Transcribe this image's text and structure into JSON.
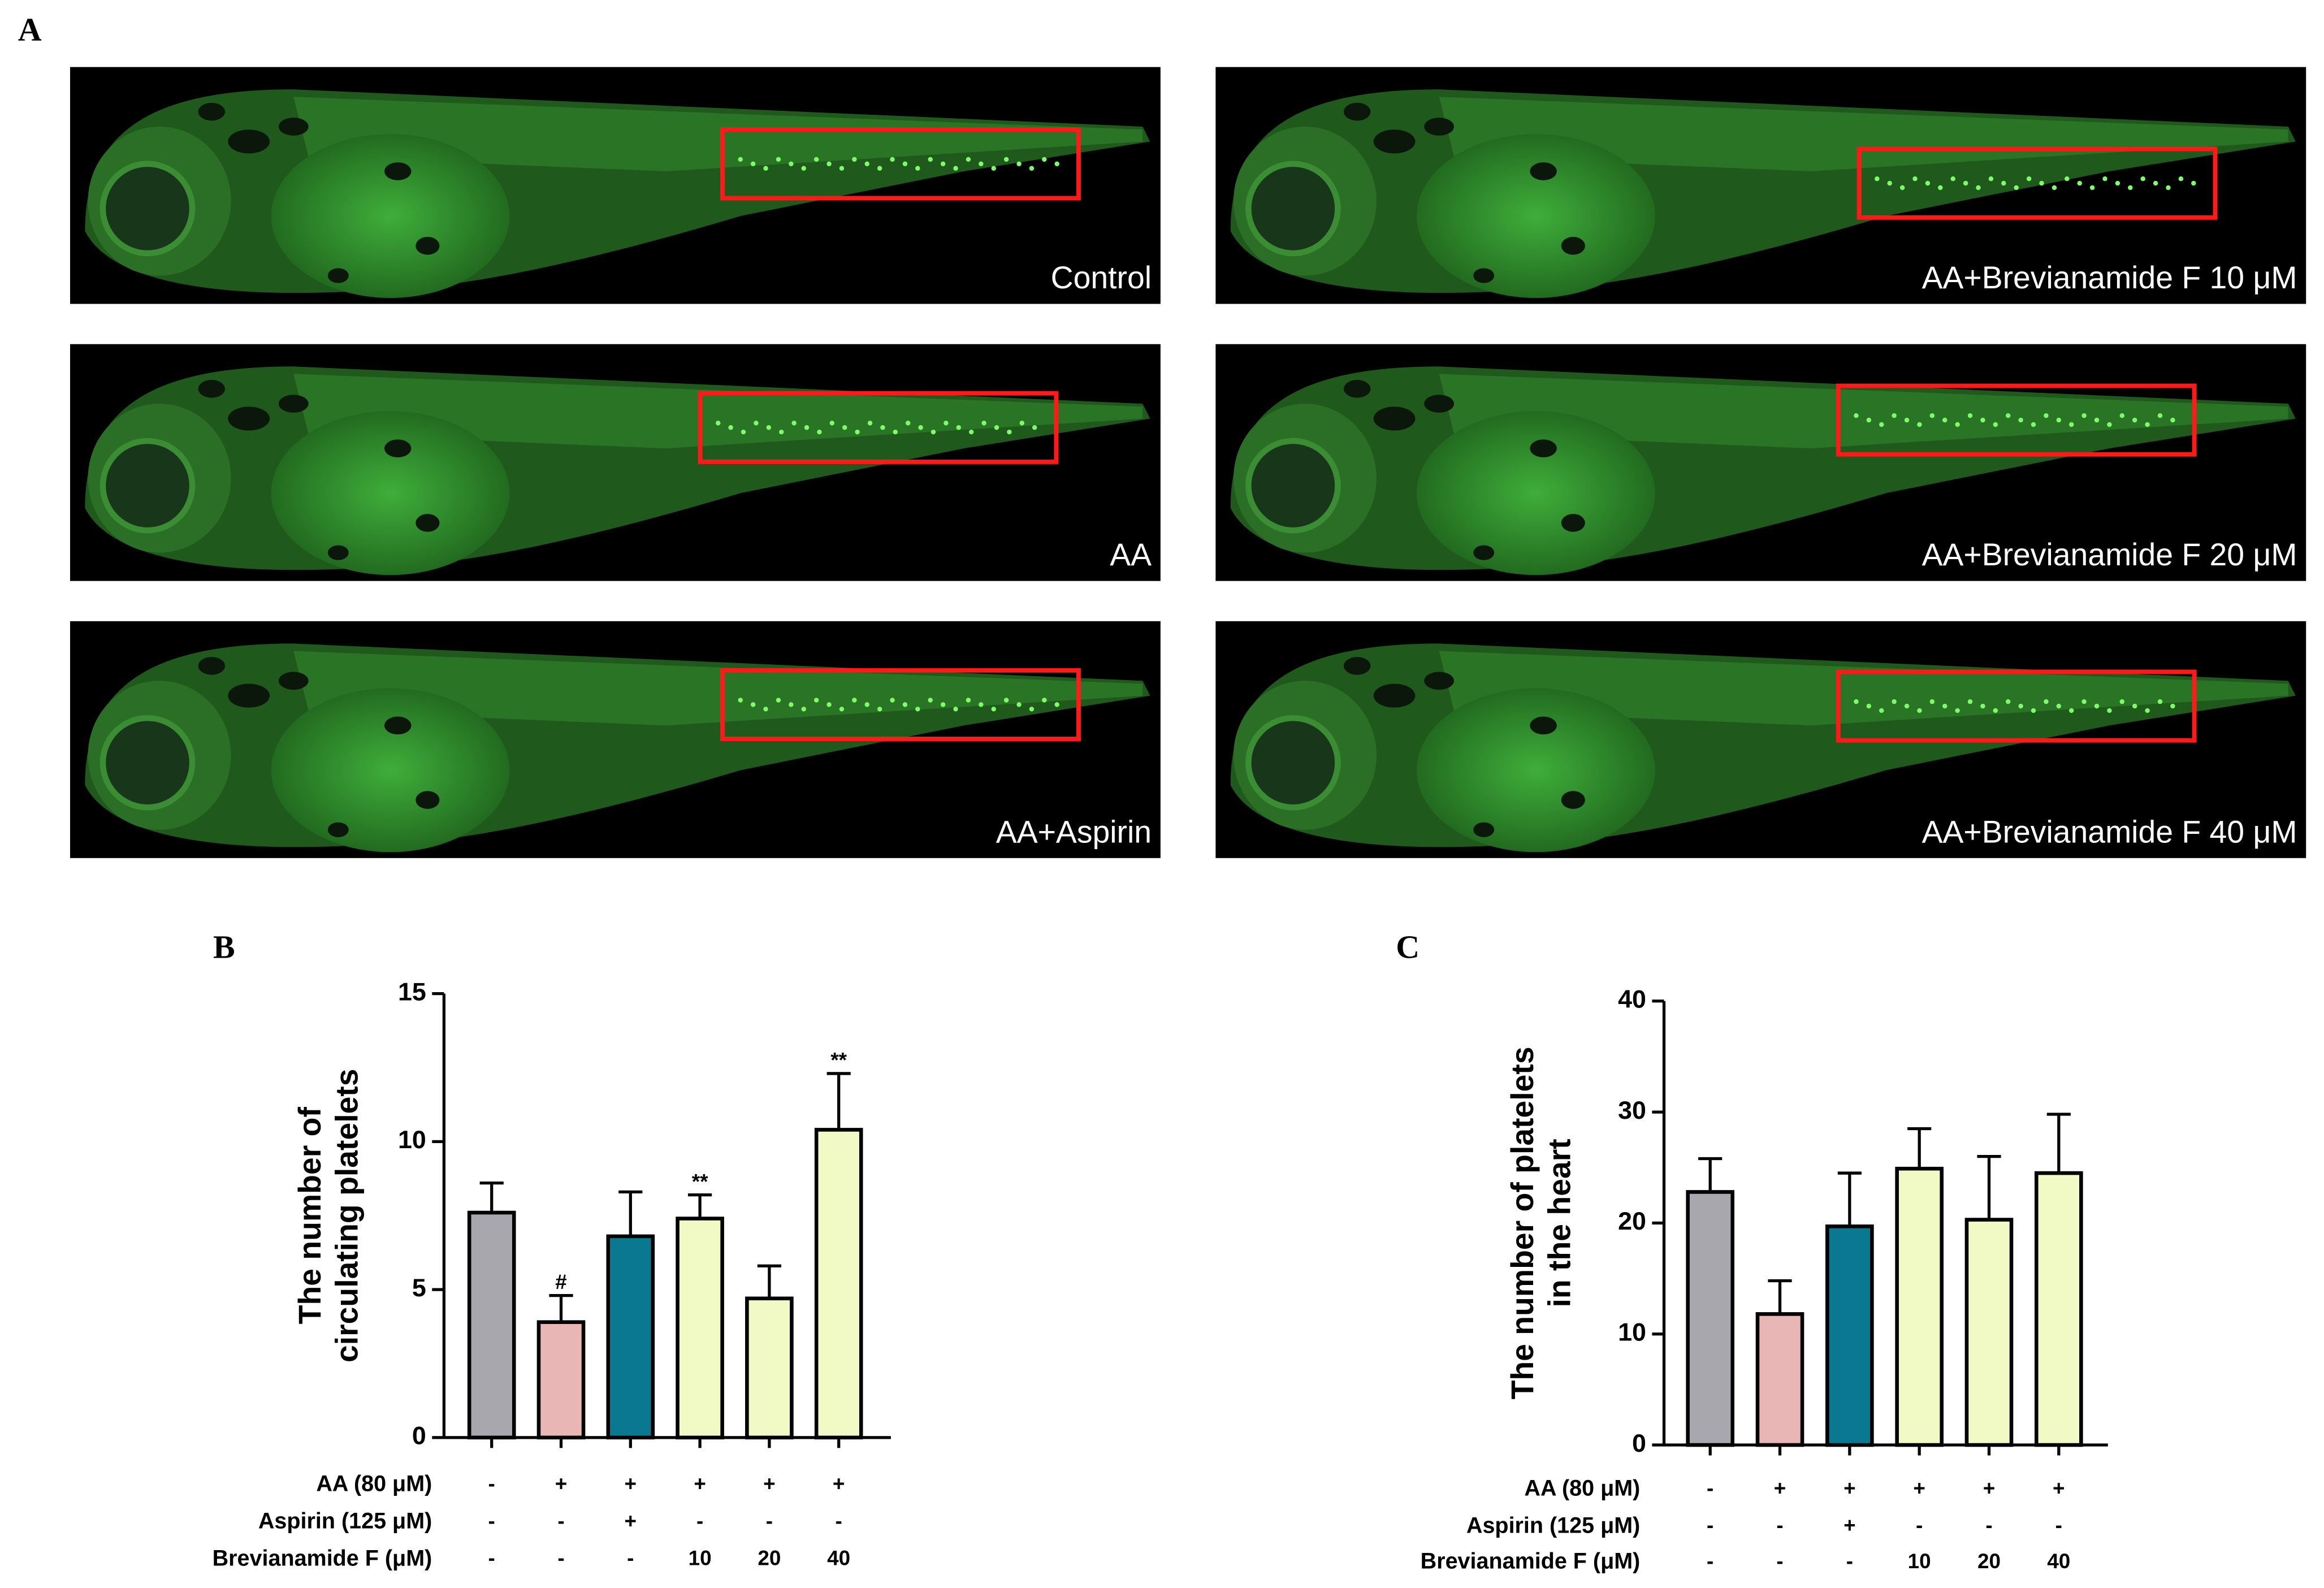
{
  "panel_a": {
    "label": "A",
    "images": [
      {
        "caption": "Control"
      },
      {
        "caption": "AA+Brevianamide F 10 μM"
      },
      {
        "caption": "AA"
      },
      {
        "caption": "AA+Brevianamide F 20 μM"
      },
      {
        "caption": "AA+Aspirin"
      },
      {
        "caption": "AA+Brevianamide F 40 μM"
      }
    ]
  },
  "chart_data": [
    {
      "type": "bar",
      "panel_label": "B",
      "ylabel": [
        "The number of",
        "circulating platelets"
      ],
      "ylim": [
        0,
        15
      ],
      "yticks": [
        0,
        5,
        10,
        15
      ],
      "values": [
        7.6,
        3.9,
        6.8,
        7.4,
        4.7,
        10.4
      ],
      "errors": [
        1.0,
        0.9,
        1.5,
        0.8,
        1.1,
        1.9
      ],
      "colors": [
        "#a7a7ad",
        "#e8b6b4",
        "#0b7891",
        "#f1fac4",
        "#f1fac4",
        "#f1fac4"
      ],
      "value_annotations": [
        null,
        "#",
        null,
        "**",
        null,
        "**"
      ],
      "treatments": [
        {
          "name": "AA (80 μM)",
          "cells": [
            "-",
            "+",
            "+",
            "+",
            "+",
            "+"
          ]
        },
        {
          "name": "Aspirin (125 μM)",
          "cells": [
            "-",
            "-",
            "+",
            "-",
            "-",
            "-"
          ]
        },
        {
          "name": "Brevianamide F (μM)",
          "cells": [
            "-",
            "-",
            "-",
            "10",
            "20",
            "40"
          ]
        }
      ]
    },
    {
      "type": "bar",
      "panel_label": "C",
      "ylabel": [
        "The number of platelets",
        "in the heart"
      ],
      "ylim": [
        0,
        40
      ],
      "yticks": [
        0,
        10,
        20,
        30,
        40
      ],
      "values": [
        22.8,
        11.8,
        19.7,
        24.9,
        20.3,
        24.5
      ],
      "errors": [
        3.0,
        3.0,
        4.8,
        3.6,
        5.7,
        5.3
      ],
      "colors": [
        "#a7a7ad",
        "#e8b6b4",
        "#0b7891",
        "#f1fac4",
        "#f1fac4",
        "#f1fac4"
      ],
      "treatments": [
        {
          "name": "AA (80 μM)",
          "cells": [
            "-",
            "+",
            "+",
            "+",
            "+",
            "+"
          ]
        },
        {
          "name": "Aspirin (125 μM)",
          "cells": [
            "-",
            "-",
            "+",
            "-",
            "-",
            "-"
          ]
        },
        {
          "name": "Brevianamide F (μM)",
          "cells": [
            "-",
            "-",
            "-",
            "10",
            "20",
            "40"
          ]
        }
      ]
    }
  ]
}
